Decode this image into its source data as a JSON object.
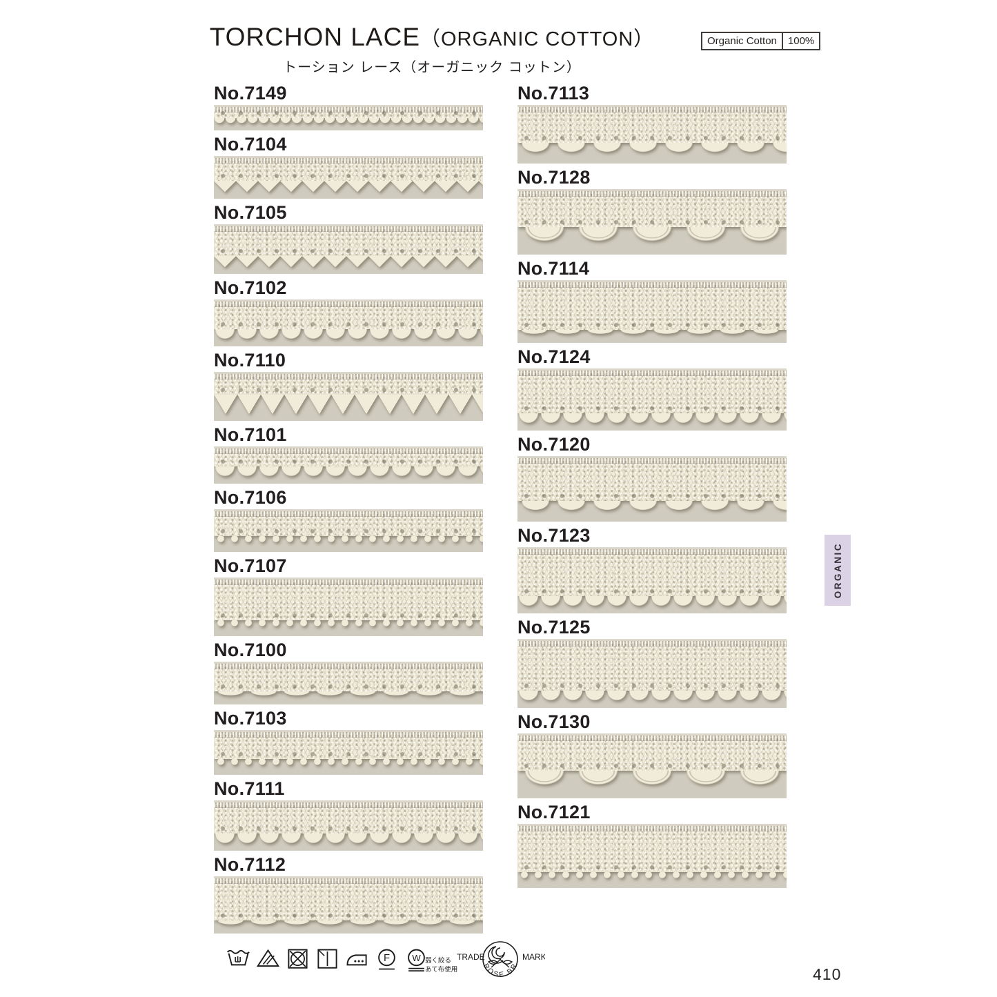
{
  "header": {
    "title_en": "TORCHON LACE",
    "title_paren": "（ORGANIC COTTON）",
    "title_jp": "トーション レース（オーガニック コットン）",
    "badge_label": "Organic Cotton",
    "badge_value": "100%"
  },
  "samples": {
    "left": [
      {
        "label": "No.7149",
        "edge": "picot",
        "photo_h": 37
      },
      {
        "label": "No.7104",
        "edge": "triangle",
        "photo_h": 62
      },
      {
        "label": "No.7105",
        "edge": "triangle",
        "photo_h": 72
      },
      {
        "label": "No.7102",
        "edge": "scallop",
        "photo_h": 68
      },
      {
        "label": "No.7110",
        "edge": "triangle-deep",
        "photo_h": 71
      },
      {
        "label": "No.7101",
        "edge": "scallop",
        "photo_h": 54
      },
      {
        "label": "No.7106",
        "edge": "tassel",
        "photo_h": 62
      },
      {
        "label": "No.7107",
        "edge": "tassel",
        "photo_h": 85
      },
      {
        "label": "No.7100",
        "edge": "wave",
        "photo_h": 62
      },
      {
        "label": "No.7103",
        "edge": "tassel",
        "photo_h": 65
      },
      {
        "label": "No.7111",
        "edge": "scallop",
        "photo_h": 73
      },
      {
        "label": "No.7112",
        "edge": "wave",
        "photo_h": 83
      }
    ],
    "right": [
      {
        "label": "No.7113",
        "edge": "scallop-lg",
        "photo_h": 85
      },
      {
        "label": "No.7128",
        "edge": "fan",
        "photo_h": 95
      },
      {
        "label": "No.7114",
        "edge": "wave",
        "photo_h": 91
      },
      {
        "label": "No.7124",
        "edge": "scallop",
        "photo_h": 90
      },
      {
        "label": "No.7120",
        "edge": "scallop-lg",
        "photo_h": 95
      },
      {
        "label": "No.7123",
        "edge": "scallop",
        "photo_h": 96
      },
      {
        "label": "No.7125",
        "edge": "scallop",
        "photo_h": 100
      },
      {
        "label": "No.7130",
        "edge": "fan",
        "photo_h": 94
      },
      {
        "label": "No.7121",
        "edge": "tassel",
        "photo_h": 93
      }
    ]
  },
  "side_tab": {
    "label": "ORGANIC"
  },
  "footer": {
    "care_icons": [
      "handwash-icon",
      "bleach-triangle-icon",
      "do-not-tumble-dry-icon",
      "drip-dry-icon",
      "iron-low-icon",
      "dryclean-f-icon",
      "wetclean-w-icon"
    ],
    "care_notes": [
      "弱く絞る",
      "あて布使用"
    ],
    "trademark_left": "TRADE",
    "trademark_right": "MARK",
    "trademark_arc": "ROSE BRAND",
    "page_number": "410"
  },
  "colors": {
    "tab_bg": "#dcd2e6",
    "lace": "#f1ecda",
    "photo_bg": "#cfcbbe"
  }
}
